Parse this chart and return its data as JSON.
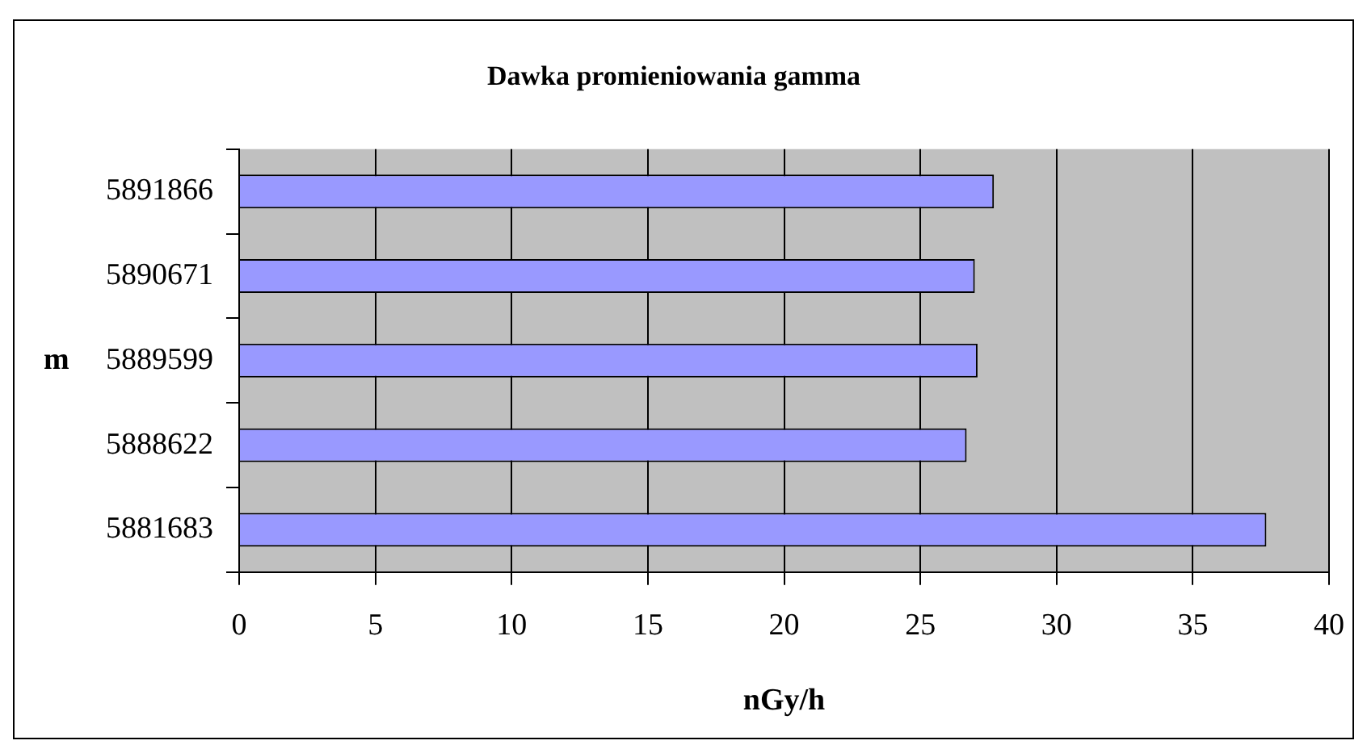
{
  "chart_data": {
    "type": "bar",
    "orientation": "horizontal",
    "title": "Dawka promieniowania gamma",
    "xlabel": "nGy/h",
    "ylabel": "m",
    "categories": [
      "5891866",
      "5890671",
      "5889599",
      "5888622",
      "5881683"
    ],
    "values": [
      27.7,
      27.0,
      27.1,
      26.7,
      37.7
    ],
    "color": "#9999ff",
    "xlim": [
      0,
      40
    ],
    "xticks": [
      0,
      5,
      10,
      15,
      20,
      25,
      30,
      35,
      40
    ],
    "grid": "x",
    "legend": false
  }
}
